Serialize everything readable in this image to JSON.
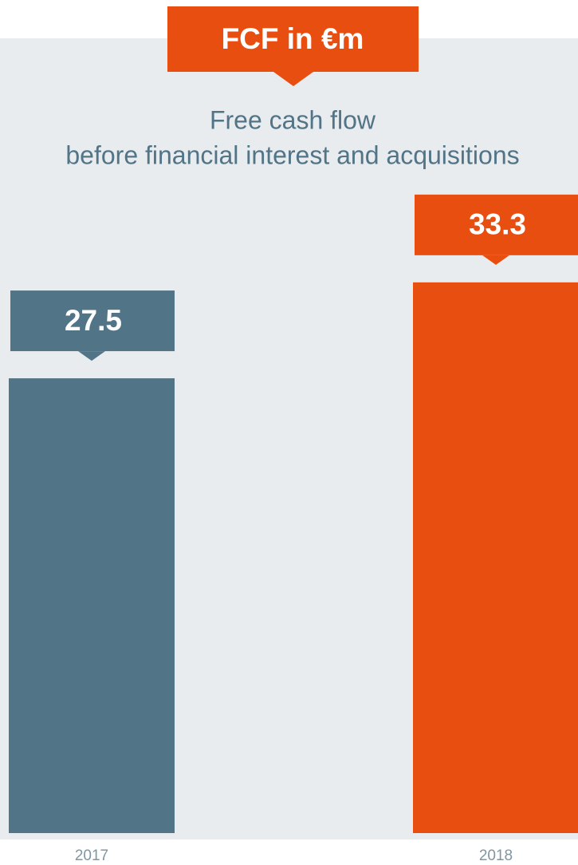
{
  "chart_data": {
    "type": "bar",
    "title": "FCF in €m",
    "subtitle": [
      "Free cash flow",
      "before financial interest and acquisitions"
    ],
    "categories": [
      "2017",
      "2018"
    ],
    "values": [
      27.5,
      33.3
    ],
    "colors": [
      "#527487",
      "#e84e10"
    ],
    "ylim": [
      0,
      40
    ]
  }
}
